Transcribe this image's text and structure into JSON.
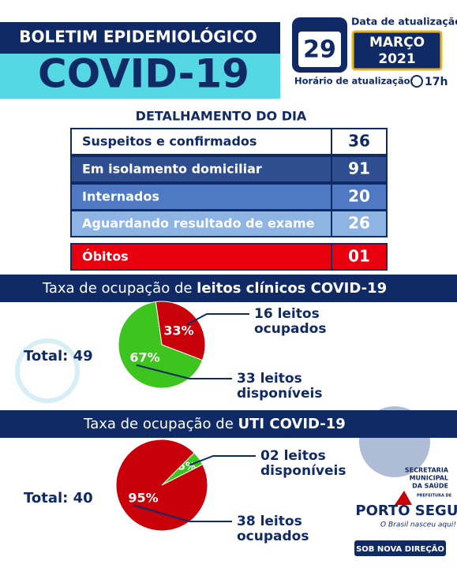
{
  "header": {
    "title": "BOLETIM EPIDEMIOLÓGICO",
    "subtitle": "COVID-19",
    "update_date_label": "Data de atualização:",
    "day": "29",
    "month": "MARÇO",
    "year": "2021",
    "update_time_label": "Horário de atualização:",
    "update_time": "17h"
  },
  "table": {
    "title": "DETALHAMENTO DO DIA",
    "rows": [
      [
        "Suspeitos e confirmados",
        "36"
      ],
      [
        "Em isolamento domiciliar",
        "91"
      ],
      [
        "Internados",
        "20"
      ],
      [
        "Aguardando resultado de exame",
        "26"
      ],
      [
        "Óbitos",
        "01"
      ]
    ]
  },
  "chart_data": [
    {
      "type": "pie",
      "title_prefix": "Taxa de ocupação de ",
      "title_bold": "leitos clínicos COVID-19",
      "total": "Total: 49",
      "values": [
        33,
        67
      ],
      "value_labels": [
        "33%",
        "67%"
      ],
      "colors": [
        "#c8000a",
        "#3dc41e"
      ],
      "annotations": [
        [
          "16 leitos",
          "ocupados"
        ],
        [
          "33 leitos",
          "disponíveis"
        ]
      ]
    },
    {
      "type": "pie",
      "title_prefix": "Taxa de ocupação de ",
      "title_bold": "UTI COVID-19",
      "total": "Total: 40",
      "values": [
        5,
        95
      ],
      "value_labels": [
        "5%",
        "95%"
      ],
      "colors": [
        "#3dc41e",
        "#c8000a"
      ],
      "annotations": [
        [
          "02 leitos",
          "disponíveis"
        ],
        [
          "38 leitos",
          "ocupados"
        ]
      ]
    }
  ],
  "logo": {
    "org1": "SECRETARIA",
    "org2": "MUNICIPAL",
    "org3": "DA SAÚDE",
    "pref": "PREFEITURA DE",
    "city": "PORTO SEGURO",
    "slogan": "O Brasil nasceu aqui!",
    "motto": "SOB NOVA DIREÇÃO"
  }
}
